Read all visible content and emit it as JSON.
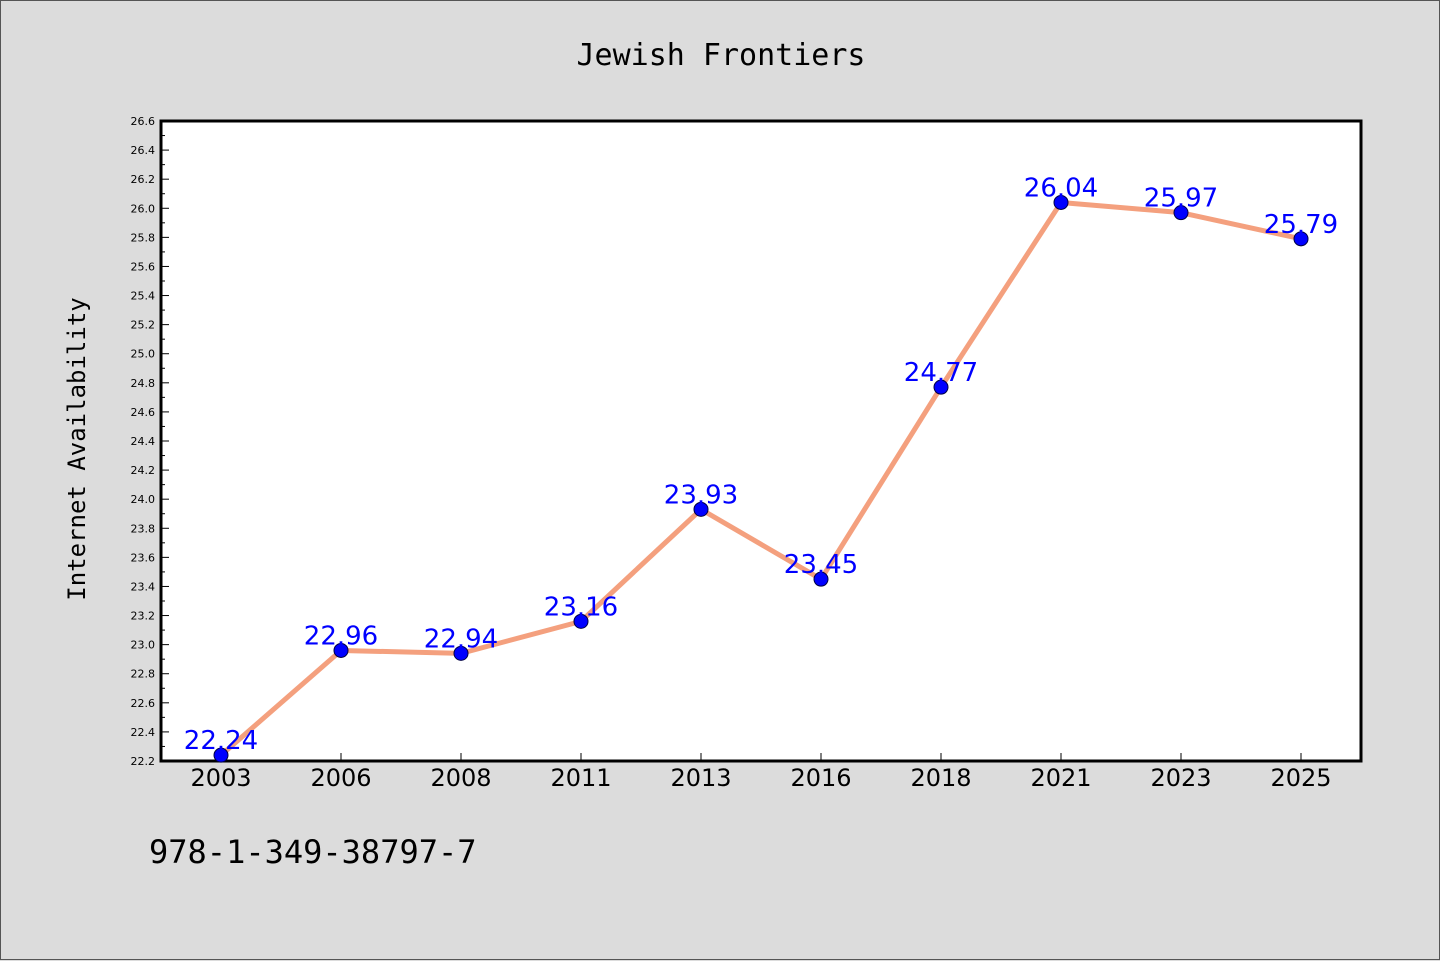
{
  "footer": {
    "code": "978-1-349-38797-7"
  },
  "colors": {
    "background": "#dcdcdc",
    "plot_background": "#ffffff",
    "line": "#f4a07e",
    "marker": "#0000ff",
    "data_label": "#0000ff"
  },
  "chart_data": {
    "type": "line",
    "title": "Jewish Frontiers",
    "xlabel": "",
    "ylabel": "Internet Availability",
    "categories": [
      "2003",
      "2006",
      "2008",
      "2011",
      "2013",
      "2016",
      "2018",
      "2021",
      "2023",
      "2025"
    ],
    "series": [
      {
        "values": [
          22.24,
          22.96,
          22.94,
          23.16,
          23.93,
          23.45,
          24.77,
          26.04,
          25.97,
          25.79
        ]
      }
    ],
    "data_labels": [
      "22.24",
      "22.96",
      "22.94",
      "23.16",
      "23.93",
      "23.45",
      "24.77",
      "26.04",
      "25.97",
      "25.79"
    ],
    "ylim": [
      22.2,
      26.6
    ],
    "yticks": [
      "22.2",
      "22.4",
      "22.6",
      "22.8",
      "23.0",
      "23.2",
      "23.4",
      "23.6",
      "23.8",
      "24.0",
      "24.2",
      "24.4",
      "24.6",
      "24.8",
      "25.0",
      "25.2",
      "25.4",
      "25.6",
      "25.8",
      "26.0",
      "26.2",
      "26.4",
      "26.6"
    ],
    "grid": false,
    "legend": "none"
  }
}
